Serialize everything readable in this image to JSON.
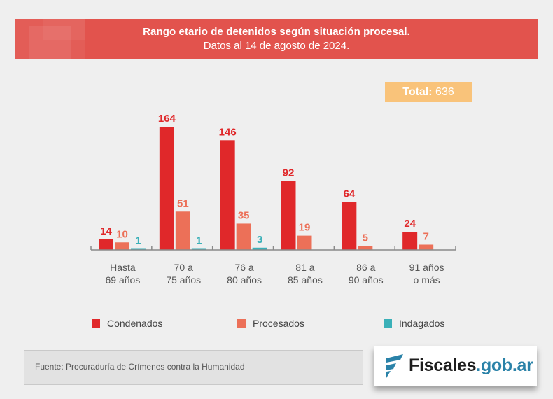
{
  "header": {
    "title": "Rango etario de detenidos según situación procesal.",
    "subtitle": "Datos al 14 de agosto de 2024."
  },
  "total": {
    "label": "Total:",
    "value": "636"
  },
  "legend": [
    {
      "name": "Condenados",
      "color": "#e0282a"
    },
    {
      "name": "Procesados",
      "color": "#ec7058"
    },
    {
      "name": "Indagados",
      "color": "#3ab0b8"
    }
  ],
  "footer": {
    "source": "Fuente: Procuraduría de Crímenes contra la Humanidad",
    "logo_main": "Fiscales",
    "logo_domain": ".gob.ar",
    "logo_icon": "fiscales-flag-icon"
  },
  "chart_data": {
    "type": "bar",
    "title": "Rango etario de detenidos según situación procesal.",
    "subtitle": "Datos al 14 de agosto de 2024.",
    "xlabel": "",
    "ylabel": "",
    "grid": false,
    "legend_position": "bottom",
    "categories": [
      [
        "Hasta",
        "69 años"
      ],
      [
        "70 a",
        "75 años"
      ],
      [
        "76 a",
        "80 años"
      ],
      [
        "81 a",
        "85 años"
      ],
      [
        "86 a",
        "90 años"
      ],
      [
        "91 años",
        "o más"
      ]
    ],
    "series": [
      {
        "name": "Condenados",
        "color": "#e0282a",
        "values": [
          14,
          164,
          146,
          92,
          64,
          24
        ]
      },
      {
        "name": "Procesados",
        "color": "#ec7058",
        "values": [
          10,
          51,
          35,
          19,
          5,
          7
        ]
      },
      {
        "name": "Indagados",
        "color": "#3ab0b8",
        "values": [
          1,
          1,
          3,
          null,
          null,
          null
        ]
      }
    ],
    "ylim": [
      0,
      170
    ]
  }
}
